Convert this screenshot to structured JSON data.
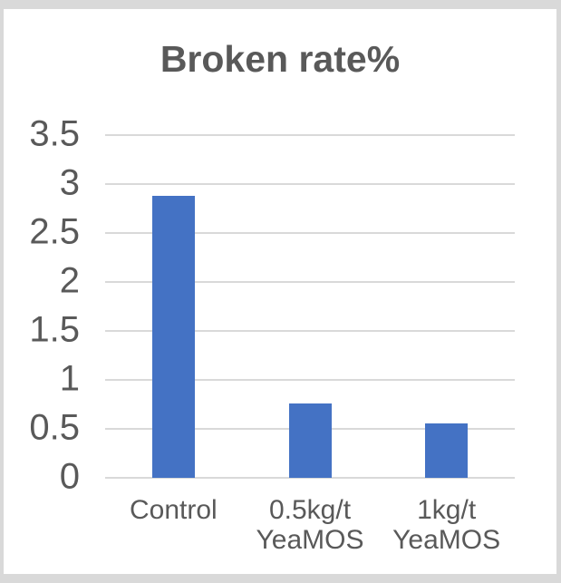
{
  "chart_data": {
    "type": "bar",
    "title": "Broken rate%",
    "categories": [
      "Control",
      "0.5kg/t YeaMOS",
      "1kg/t YeaMOS"
    ],
    "categories_lines": [
      [
        "Control"
      ],
      [
        "0.5kg/t",
        "YeaMOS"
      ],
      [
        "1kg/t",
        "YeaMOS"
      ]
    ],
    "values": [
      2.88,
      0.76,
      0.56
    ],
    "xlabel": "",
    "ylabel": "",
    "ylim": [
      0,
      3.5
    ],
    "ytick_step": 0.5,
    "ytick_labels": [
      "0",
      "0.5",
      "1",
      "1.5",
      "2",
      "2.5",
      "3",
      "3.5"
    ],
    "grid": true,
    "legend": false,
    "colors": {
      "bar": "#4472C4",
      "gridline": "#D9D9D9",
      "text": "#595959",
      "frame_border": "#D9D9D9",
      "background": "#FFFFFF"
    }
  }
}
